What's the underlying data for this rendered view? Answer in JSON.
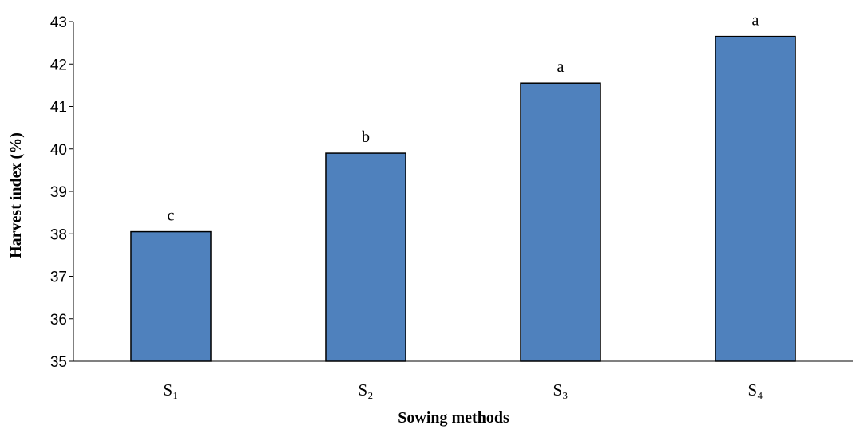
{
  "chart_data": {
    "type": "bar",
    "categories": [
      "S₁",
      "S₂",
      "S₃",
      "S₄"
    ],
    "values": [
      38.05,
      39.9,
      41.55,
      42.65
    ],
    "data_labels": [
      "c",
      "b",
      "a",
      "a"
    ],
    "title": "",
    "xlabel": "Sowing methods",
    "ylabel": "Harvest index (%)",
    "ylim": [
      35,
      43
    ],
    "yticks": [
      35,
      36,
      37,
      38,
      39,
      40,
      41,
      42,
      43
    ],
    "grid": false,
    "legend": "none",
    "bar_color": "#4f81bd"
  }
}
